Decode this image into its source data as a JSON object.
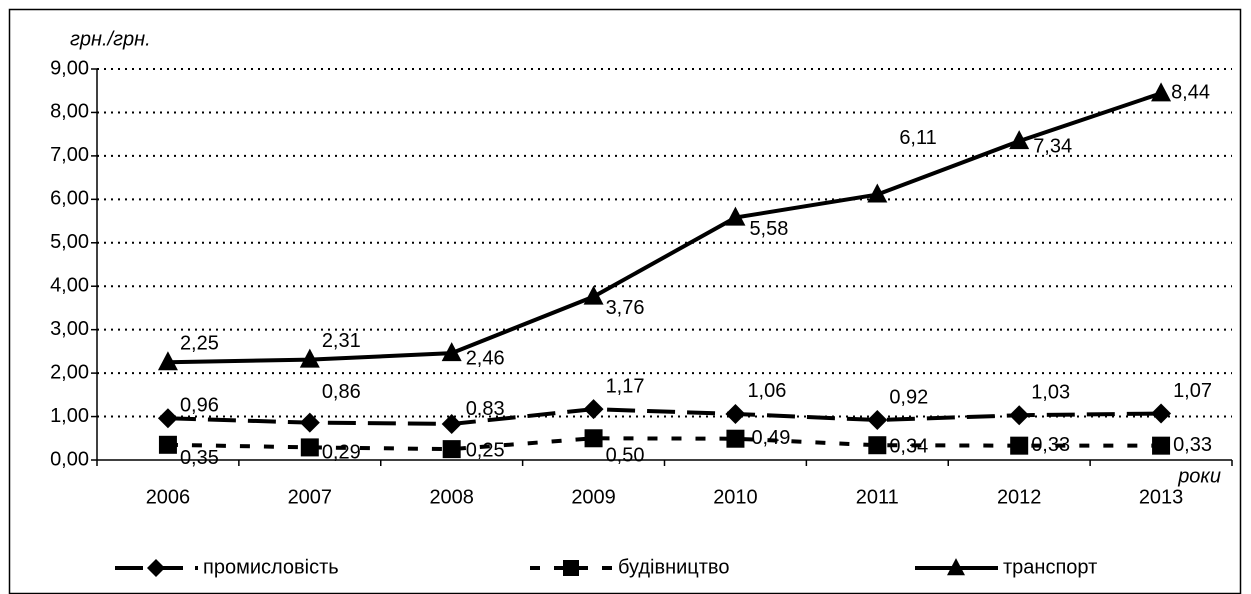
{
  "chart_data": {
    "type": "line",
    "y_label": "грн./грн.",
    "x_label": "роки",
    "categories": [
      "2006",
      "2007",
      "2008",
      "2009",
      "2010",
      "2011",
      "2012",
      "2013"
    ],
    "series": [
      {
        "name": "промисловість",
        "color": "#000000",
        "dash": "long",
        "marker": "diamond",
        "values": [
          0.96,
          0.86,
          0.83,
          1.17,
          1.06,
          0.92,
          1.03,
          1.07
        ],
        "value_labels": [
          "0,96",
          "0,86",
          "0,83",
          "1,17",
          "1,06",
          "0,92",
          "1,03",
          "1,07"
        ]
      },
      {
        "name": "будівництво",
        "color": "#000000",
        "dash": "short",
        "marker": "square",
        "values": [
          0.35,
          0.29,
          0.25,
          0.5,
          0.49,
          0.34,
          0.33,
          0.33
        ],
        "value_labels": [
          "0,35",
          "0,29",
          "0,25",
          "0,50",
          "0,49",
          "0,34",
          "0,33",
          "0,33"
        ]
      },
      {
        "name": "транспорт",
        "color": "#000000",
        "dash": "solid",
        "marker": "triangle",
        "values": [
          2.25,
          2.31,
          2.46,
          3.76,
          5.58,
          6.11,
          7.34,
          8.44
        ],
        "value_labels": [
          "2,25",
          "2,31",
          "2,46",
          "3,76",
          "5,58",
          "6,11",
          "7,34",
          "8,44"
        ]
      }
    ],
    "ylim": [
      0,
      9
    ],
    "yticks": [
      {
        "value": 0,
        "label": "0,00"
      },
      {
        "value": 1,
        "label": "1,00"
      },
      {
        "value": 2,
        "label": "2,00"
      },
      {
        "value": 3,
        "label": "3,00"
      },
      {
        "value": 4,
        "label": "4,00"
      },
      {
        "value": 5,
        "label": "5,00"
      },
      {
        "value": 6,
        "label": "6,00"
      },
      {
        "value": 7,
        "label": "7,00"
      },
      {
        "value": 8,
        "label": "8,00"
      },
      {
        "value": 9,
        "label": "9,00"
      }
    ],
    "grid": true
  }
}
